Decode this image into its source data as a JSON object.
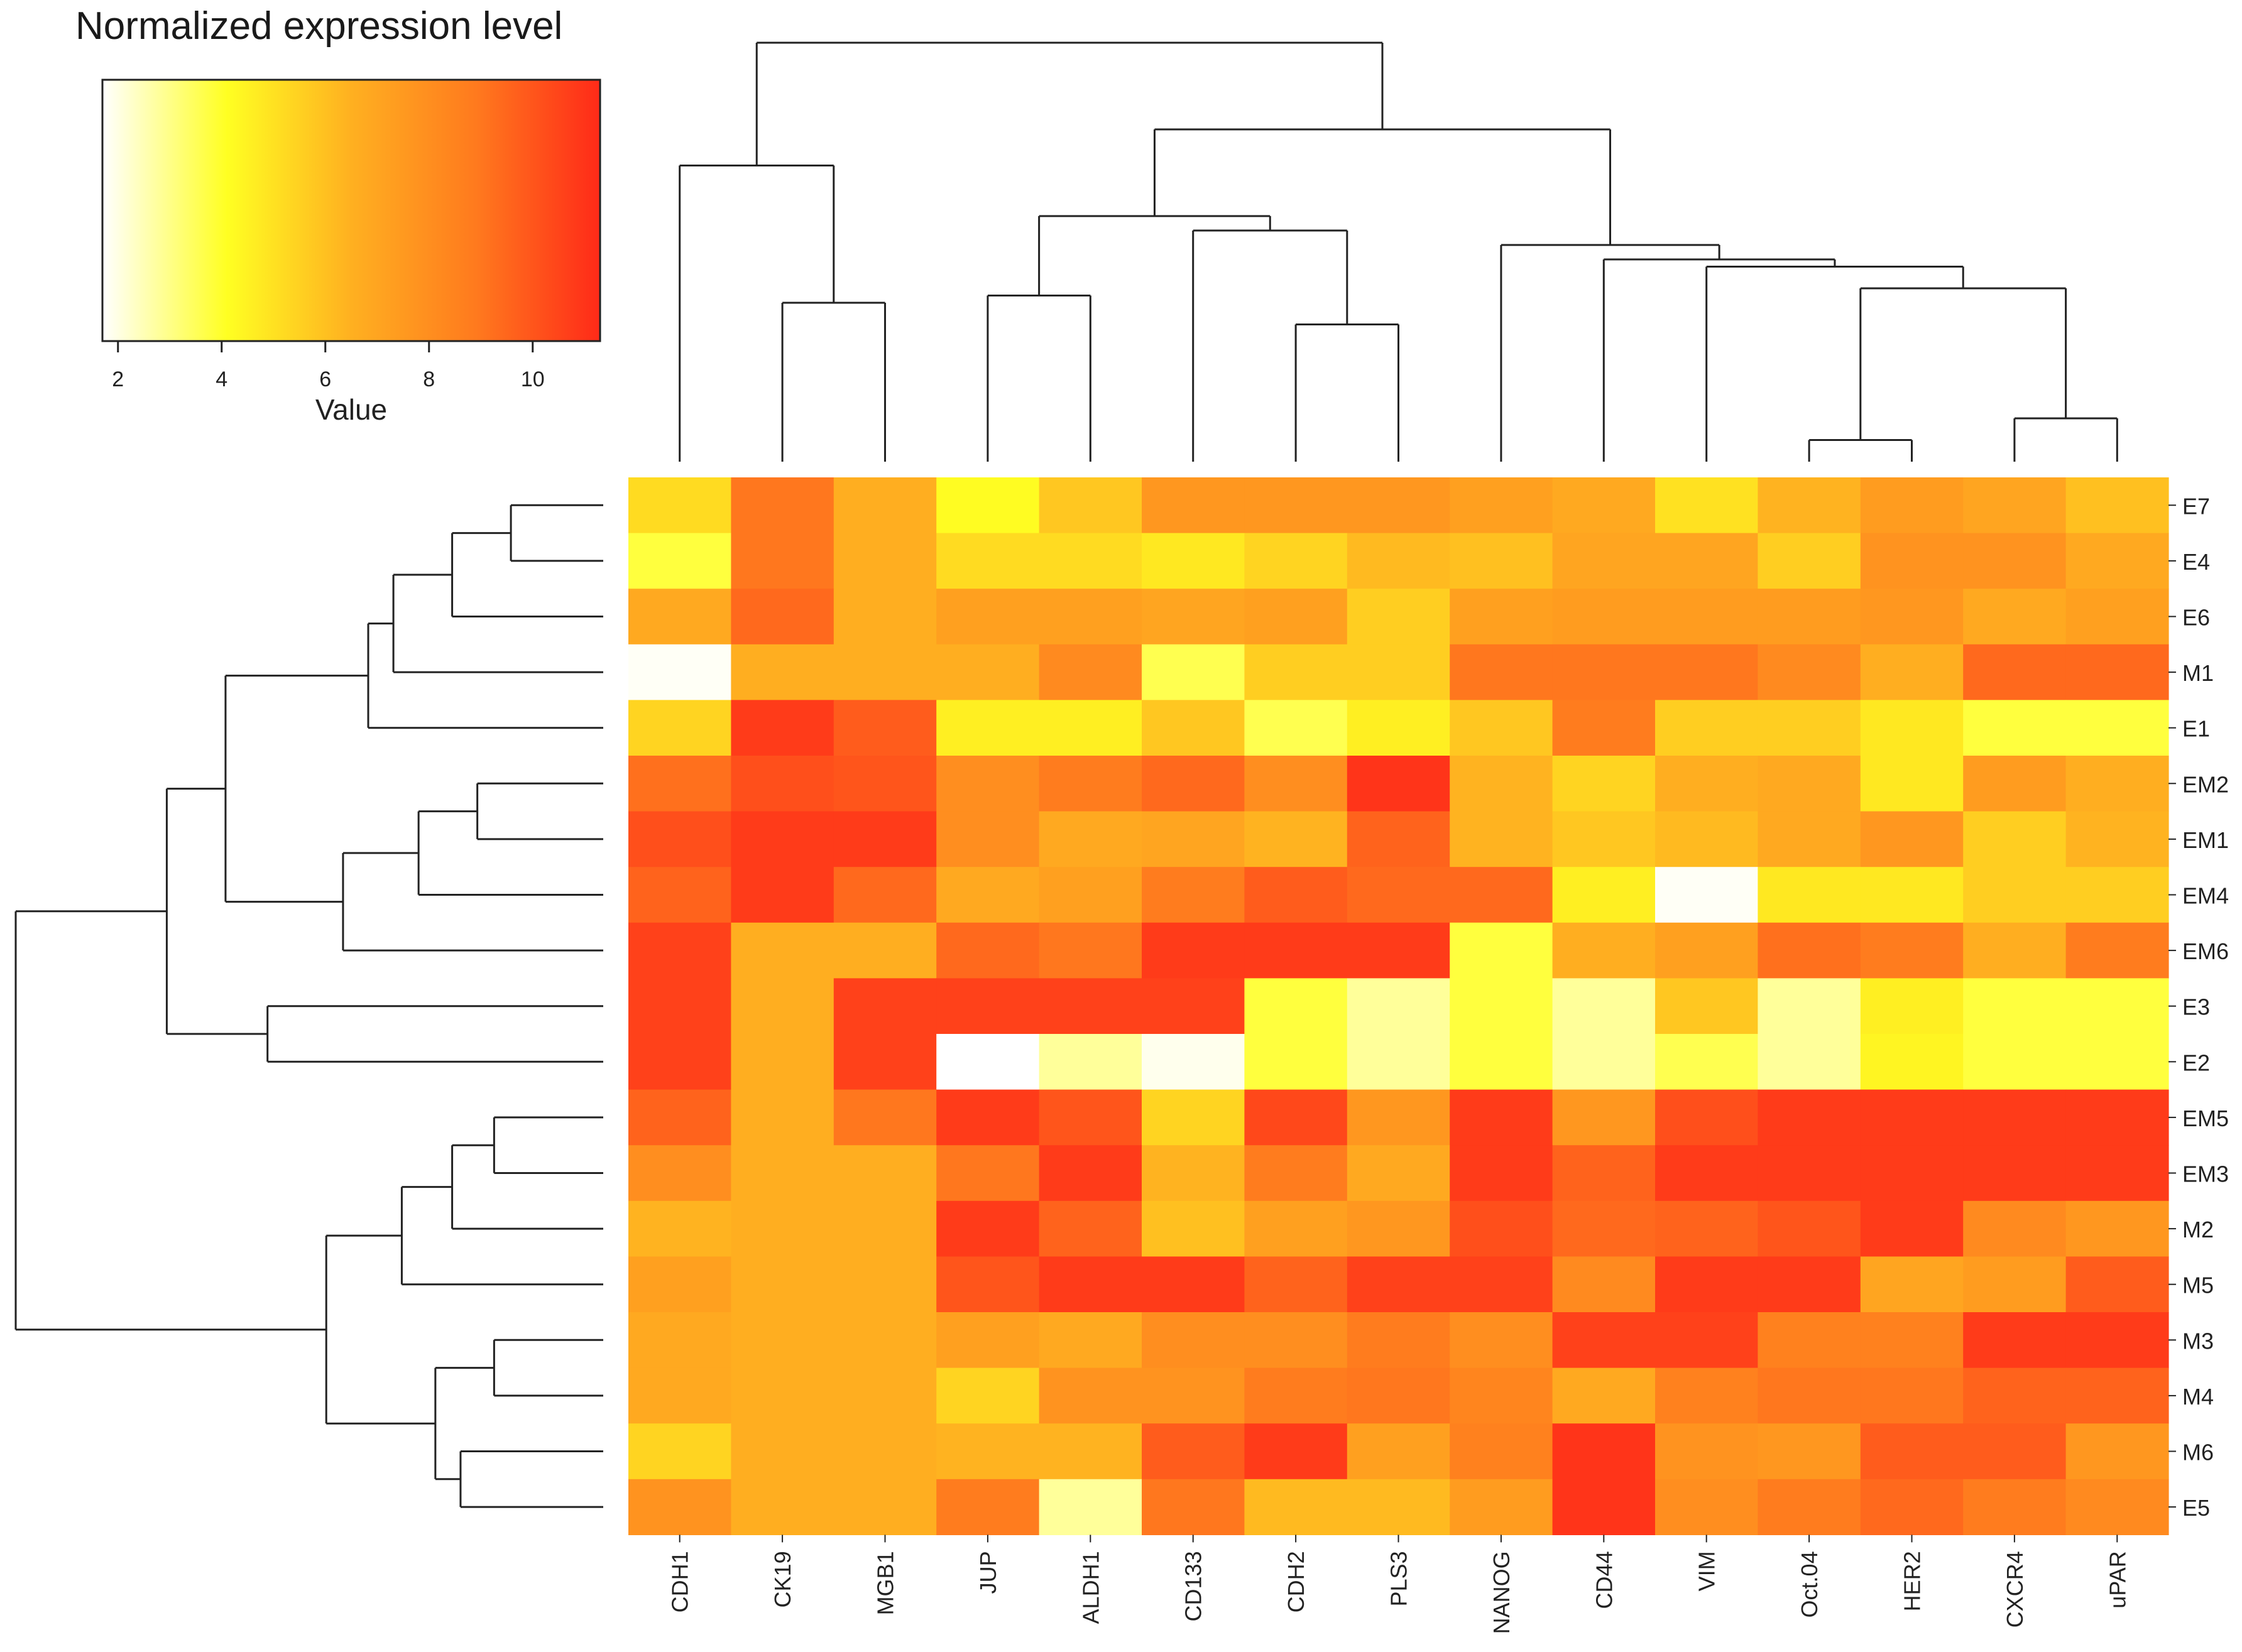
{
  "chart_data": {
    "type": "heatmap",
    "title": "Normalized expression level",
    "color_key": {
      "title": "Normalized expression level",
      "xlabel": "Value",
      "range": [
        1.7,
        11.3
      ],
      "ticks": [
        2,
        4,
        6,
        8,
        10
      ],
      "tick_labels": [
        "2",
        "4",
        "6",
        "8",
        "10"
      ],
      "colors": [
        "#ffffff",
        "#ffff22",
        "#ffb020",
        "#ff7a1e",
        "#ff2a18"
      ]
    },
    "columns": [
      "CDH1",
      "CK19",
      "MGB1",
      "JUP",
      "ALDH1",
      "CD133",
      "CDH2",
      "PLS3",
      "NANOG",
      "CD44",
      "VIM",
      "Oct.04",
      "HER2",
      "CXCR4",
      "uPAR"
    ],
    "rows": [
      "E7",
      "E4",
      "E6",
      "M1",
      "E1",
      "EM2",
      "EM1",
      "EM4",
      "EM6",
      "E3",
      "E2",
      "EM5",
      "EM3",
      "M2",
      "M5",
      "M3",
      "M4",
      "M6",
      "E5"
    ],
    "values": [
      [
        5.2,
        9.0,
        6.6,
        4.2,
        5.8,
        7.6,
        7.6,
        7.6,
        7.2,
        6.8,
        5.0,
        6.4,
        7.4,
        7.0,
        6.0
      ],
      [
        3.8,
        9.0,
        6.6,
        5.2,
        5.2,
        4.8,
        5.4,
        6.2,
        6.0,
        7.0,
        7.0,
        5.6,
        7.8,
        7.8,
        6.8
      ],
      [
        6.8,
        9.4,
        6.6,
        7.2,
        7.2,
        7.0,
        7.2,
        5.6,
        7.2,
        7.4,
        7.4,
        7.4,
        7.6,
        6.8,
        7.2
      ],
      [
        1.8,
        6.6,
        6.6,
        6.6,
        8.2,
        3.6,
        5.6,
        5.6,
        9.0,
        9.0,
        9.0,
        8.2,
        6.6,
        9.4,
        9.4
      ],
      [
        5.4,
        10.8,
        9.8,
        4.6,
        4.6,
        5.8,
        3.6,
        4.6,
        5.8,
        8.8,
        5.6,
        5.6,
        4.8,
        3.8,
        3.8
      ],
      [
        9.2,
        10.2,
        10.0,
        8.0,
        8.8,
        9.4,
        8.0,
        11.0,
        6.4,
        5.4,
        6.6,
        6.8,
        4.8,
        7.4,
        6.6
      ],
      [
        10.2,
        10.8,
        10.8,
        8.0,
        6.8,
        7.0,
        6.4,
        9.6,
        6.4,
        5.8,
        6.2,
        6.8,
        7.6,
        5.6,
        6.4
      ],
      [
        9.6,
        10.8,
        9.4,
        6.8,
        7.2,
        8.8,
        9.8,
        9.4,
        9.4,
        4.6,
        1.8,
        4.8,
        4.8,
        5.6,
        5.6
      ],
      [
        10.6,
        6.6,
        6.6,
        9.4,
        9.0,
        10.8,
        10.8,
        10.8,
        3.8,
        6.6,
        7.2,
        9.2,
        8.8,
        6.6,
        8.8
      ],
      [
        10.6,
        6.6,
        10.6,
        10.6,
        10.6,
        10.6,
        3.8,
        2.8,
        3.8,
        2.8,
        5.8,
        2.8,
        4.6,
        3.8,
        3.8
      ],
      [
        10.6,
        6.6,
        10.6,
        1.7,
        2.8,
        1.9,
        3.8,
        2.8,
        3.8,
        2.8,
        3.6,
        2.8,
        4.4,
        3.8,
        3.8
      ],
      [
        9.6,
        6.6,
        9.0,
        10.8,
        10.0,
        5.4,
        10.4,
        7.6,
        10.8,
        7.6,
        10.2,
        10.8,
        10.8,
        10.8,
        10.8
      ],
      [
        8.0,
        6.6,
        6.6,
        9.0,
        10.8,
        6.4,
        8.8,
        6.8,
        10.8,
        9.6,
        10.8,
        10.8,
        10.8,
        10.8,
        10.8
      ],
      [
        6.4,
        6.6,
        6.6,
        10.8,
        9.6,
        6.0,
        7.2,
        7.6,
        10.2,
        9.4,
        9.6,
        10.0,
        10.8,
        8.2,
        7.6
      ],
      [
        7.2,
        6.6,
        6.6,
        10.0,
        10.8,
        10.8,
        9.6,
        10.6,
        10.6,
        8.2,
        10.8,
        10.8,
        7.0,
        7.4,
        9.8
      ],
      [
        6.8,
        6.6,
        6.6,
        7.2,
        6.8,
        8.0,
        8.0,
        8.8,
        8.0,
        10.6,
        10.6,
        8.6,
        8.6,
        10.8,
        10.8
      ],
      [
        6.8,
        6.6,
        6.6,
        5.4,
        7.8,
        7.8,
        8.8,
        9.0,
        8.4,
        6.8,
        8.6,
        9.0,
        9.0,
        9.6,
        9.6
      ],
      [
        5.4,
        6.6,
        6.6,
        6.4,
        6.4,
        9.8,
        10.8,
        7.2,
        8.6,
        11.0,
        7.8,
        7.6,
        9.8,
        9.8,
        7.6
      ],
      [
        7.8,
        6.6,
        6.6,
        8.8,
        2.8,
        9.0,
        6.2,
        6.2,
        7.4,
        11.0,
        8.0,
        8.8,
        9.4,
        8.8,
        8.2
      ]
    ],
    "column_dendrogram": {
      "order": [
        "CDH1",
        "CK19",
        "MGB1",
        "JUP",
        "ALDH1",
        "CD133",
        "CDH2",
        "PLS3",
        "NANOG",
        "CD44",
        "VIM",
        "Oct.04",
        "HER2",
        "CXCR4",
        "uPAR"
      ],
      "merges": [
        {
          "a": "Oct.04",
          "b": "HER2",
          "height": 0.3
        },
        {
          "a": "CXCR4",
          "b": "uPAR",
          "height": 0.6
        },
        {
          "a": "CDH2",
          "b": "PLS3",
          "height": 1.9
        },
        {
          "a": "CK19",
          "b": "MGB1",
          "height": 2.2
        },
        {
          "a": "JUP",
          "b": "ALDH1",
          "height": 2.3
        },
        {
          "a": "m1",
          "b": "m2",
          "height": 2.4
        },
        {
          "a": "VIM",
          "b": "m6",
          "height": 2.7
        },
        {
          "a": "CD44",
          "b": "m7",
          "height": 2.8
        },
        {
          "a": "NANOG",
          "b": "m8",
          "height": 3.0
        },
        {
          "a": "CD133",
          "b": "m3",
          "height": 3.2
        },
        {
          "a": "m5",
          "b": "m10",
          "height": 3.4
        },
        {
          "a": "m11",
          "b": "m9",
          "height": 4.6
        },
        {
          "a": "CDH1",
          "b": "m4",
          "height": 4.1
        },
        {
          "a": "m13",
          "b": "m12",
          "height": 5.8
        }
      ]
    },
    "row_dendrogram": {
      "order": [
        "E7",
        "E4",
        "E6",
        "M1",
        "E1",
        "EM2",
        "EM1",
        "EM4",
        "EM6",
        "E3",
        "E2",
        "EM5",
        "EM3",
        "M2",
        "M5",
        "M3",
        "M4",
        "M6",
        "E5"
      ],
      "merges": [
        {
          "a": "E7",
          "b": "E4",
          "height": 1.1
        },
        {
          "a": "EM5",
          "b": "EM3",
          "height": 1.3
        },
        {
          "a": "M3",
          "b": "M4",
          "height": 1.3
        },
        {
          "a": "EM2",
          "b": "EM1",
          "height": 1.5
        },
        {
          "a": "M6",
          "b": "E5",
          "height": 1.7
        },
        {
          "a": "m1",
          "b": "E6",
          "height": 1.8
        },
        {
          "a": "m2",
          "b": "M2",
          "height": 1.8
        },
        {
          "a": "m3",
          "b": "m5",
          "height": 2.0
        },
        {
          "a": "m4",
          "b": "EM4",
          "height": 2.2
        },
        {
          "a": "m6",
          "b": "M1",
          "height": 2.5
        },
        {
          "a": "m7",
          "b": "M5",
          "height": 2.4
        },
        {
          "a": "m10",
          "b": "E1",
          "height": 2.8
        },
        {
          "a": "m9",
          "b": "EM6",
          "height": 3.1
        },
        {
          "a": "E3",
          "b": "E2",
          "height": 4.0
        },
        {
          "a": "m11",
          "b": "m8",
          "height": 3.3
        },
        {
          "a": "m12",
          "b": "m13",
          "height": 4.5
        },
        {
          "a": "m16",
          "b": "m14",
          "height": 5.2
        },
        {
          "a": "m17",
          "b": "m15",
          "height": 7.0
        }
      ]
    }
  }
}
